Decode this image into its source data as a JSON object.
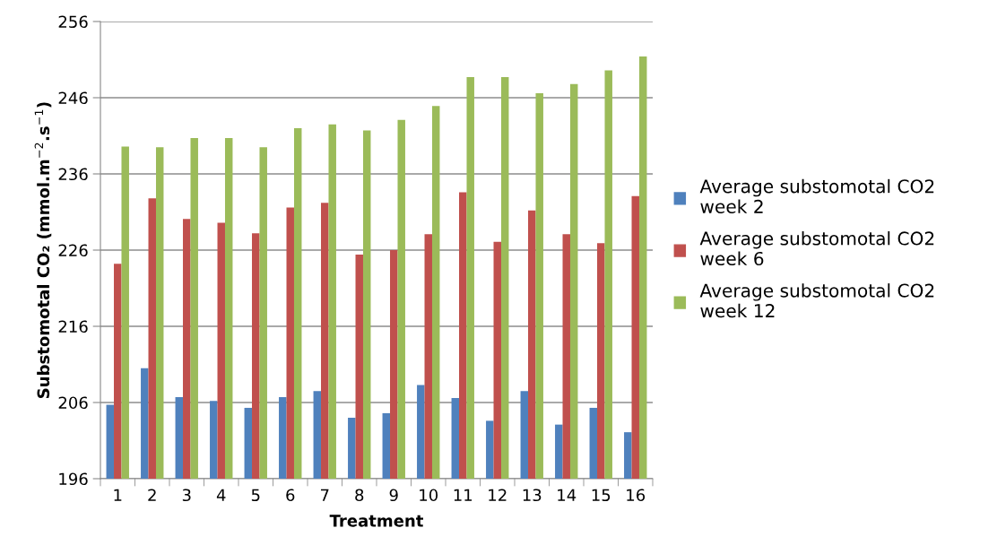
{
  "chart_data": {
    "type": "bar",
    "xlabel": "Treatment",
    "ylabel": "Substomotal CO₂ (mmol.m$^{−2}$.s$^{−1}$)",
    "categories": [
      "1",
      "2",
      "3",
      "4",
      "5",
      "6",
      "7",
      "8",
      "9",
      "10",
      "11",
      "12",
      "13",
      "14",
      "15",
      "16"
    ],
    "series": [
      {
        "name": "Average substomotal CO2 week 2",
        "color": "#4f81bd",
        "values": [
          205.7,
          210.5,
          206.7,
          206.2,
          205.3,
          206.7,
          207.5,
          204.0,
          204.6,
          208.3,
          206.6,
          203.6,
          207.5,
          203.1,
          205.3,
          202.1
        ]
      },
      {
        "name": "Average substomotal CO2 week 6",
        "color": "#c0504d",
        "values": [
          224.2,
          232.8,
          230.1,
          229.6,
          228.2,
          231.6,
          232.2,
          225.4,
          226.0,
          228.1,
          233.6,
          227.1,
          231.2,
          228.1,
          226.9,
          233.1
        ]
      },
      {
        "name": "Average substomotal CO2 week 12",
        "color": "#9bbb59",
        "values": [
          239.6,
          239.5,
          240.7,
          240.7,
          239.5,
          242.0,
          242.5,
          241.7,
          243.1,
          244.9,
          248.7,
          248.7,
          246.6,
          247.8,
          249.6,
          251.4
        ]
      }
    ],
    "ylim": [
      196,
      256
    ],
    "yticks": [
      196,
      206,
      216,
      226,
      236,
      246,
      256
    ],
    "grid": "y",
    "legend": "right"
  }
}
